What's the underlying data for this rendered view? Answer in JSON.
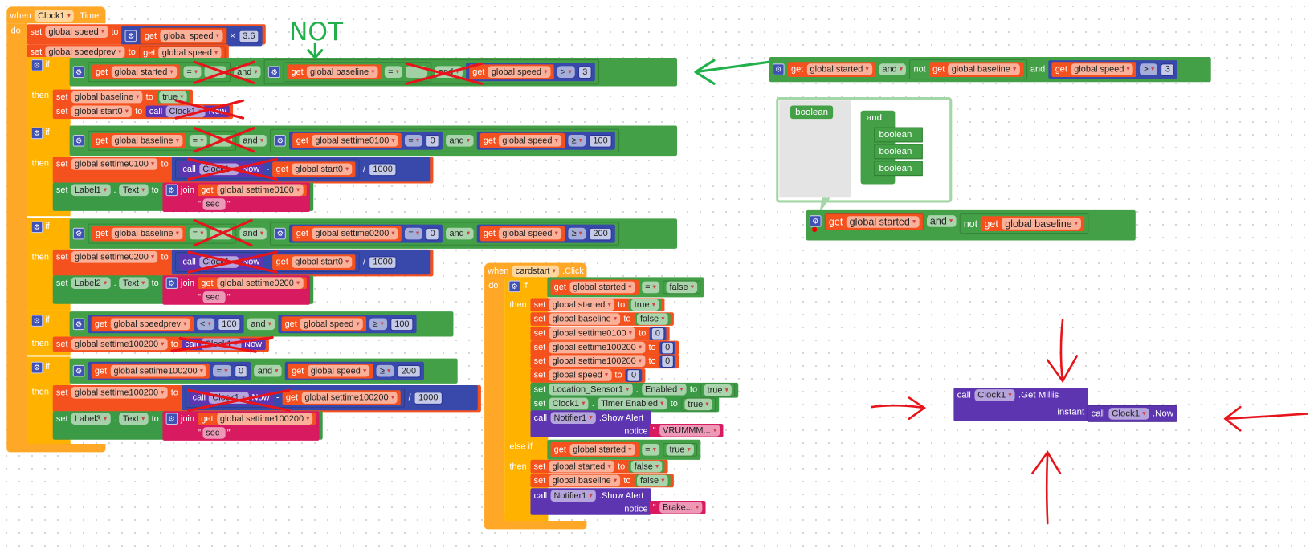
{
  "kw": {
    "when": "when",
    "do": "do",
    "set": "set",
    "get": "get",
    "to": "to",
    "if": "if",
    "then": "then",
    "else_if": "else if",
    "and": "and",
    "not": "not",
    "call": "call",
    "join": "join",
    "notice": "notice",
    "instant": "instant",
    "dot": ".",
    "quote": "\""
  },
  "ops": {
    "eq": "=",
    "gt": ">",
    "gte": "≥",
    "lt": "<",
    "times": "×",
    "minus": "-",
    "div": "/"
  },
  "vars": {
    "speed": "global speed",
    "speedprev": "global speedprev",
    "started": "global started",
    "baseline": "global baseline",
    "start0": "global start0",
    "settime0100": "global settime0100",
    "settime0200": "global settime0200",
    "settime100200": "global settime100200"
  },
  "values": {
    "v3_6": "3.6",
    "v3": "3",
    "v0": "0",
    "v100": "100",
    "v200": "200",
    "v1000": "1000",
    "true": "true",
    "false": "false",
    "sec": "sec",
    "vrum": "VRUMMM...",
    "brake": "Brake..."
  },
  "components": {
    "clock1": "Clock1",
    "label1": "Label1",
    "label2": "Label2",
    "label3": "Label3",
    "cardstart": "cardstart",
    "location": "Location_Sensor1",
    "notifier": "Notifier1"
  },
  "props": {
    "text": "Text",
    "enabled": "Enabled",
    "timer_enabled": "Timer Enabled"
  },
  "events": {
    "timer": ".Timer",
    "click": ".Click"
  },
  "methods": {
    "now": "Now",
    "now_dot": ".Now",
    "get_millis": ".Get Millis",
    "show_alert": ".Show Alert"
  },
  "mutator": {
    "boolean": "boolean",
    "and": "and"
  },
  "annotation": {
    "not": "NOT"
  },
  "colors": {
    "variable": "#f4511e",
    "math": "#3949ab",
    "logic": "#43a047",
    "text": "#d81b60",
    "component_call": "#5e35b1",
    "event": "#ffa726",
    "control": "#ffb300",
    "annotation_red": "#e8141b",
    "annotation_green": "#22b04a"
  }
}
